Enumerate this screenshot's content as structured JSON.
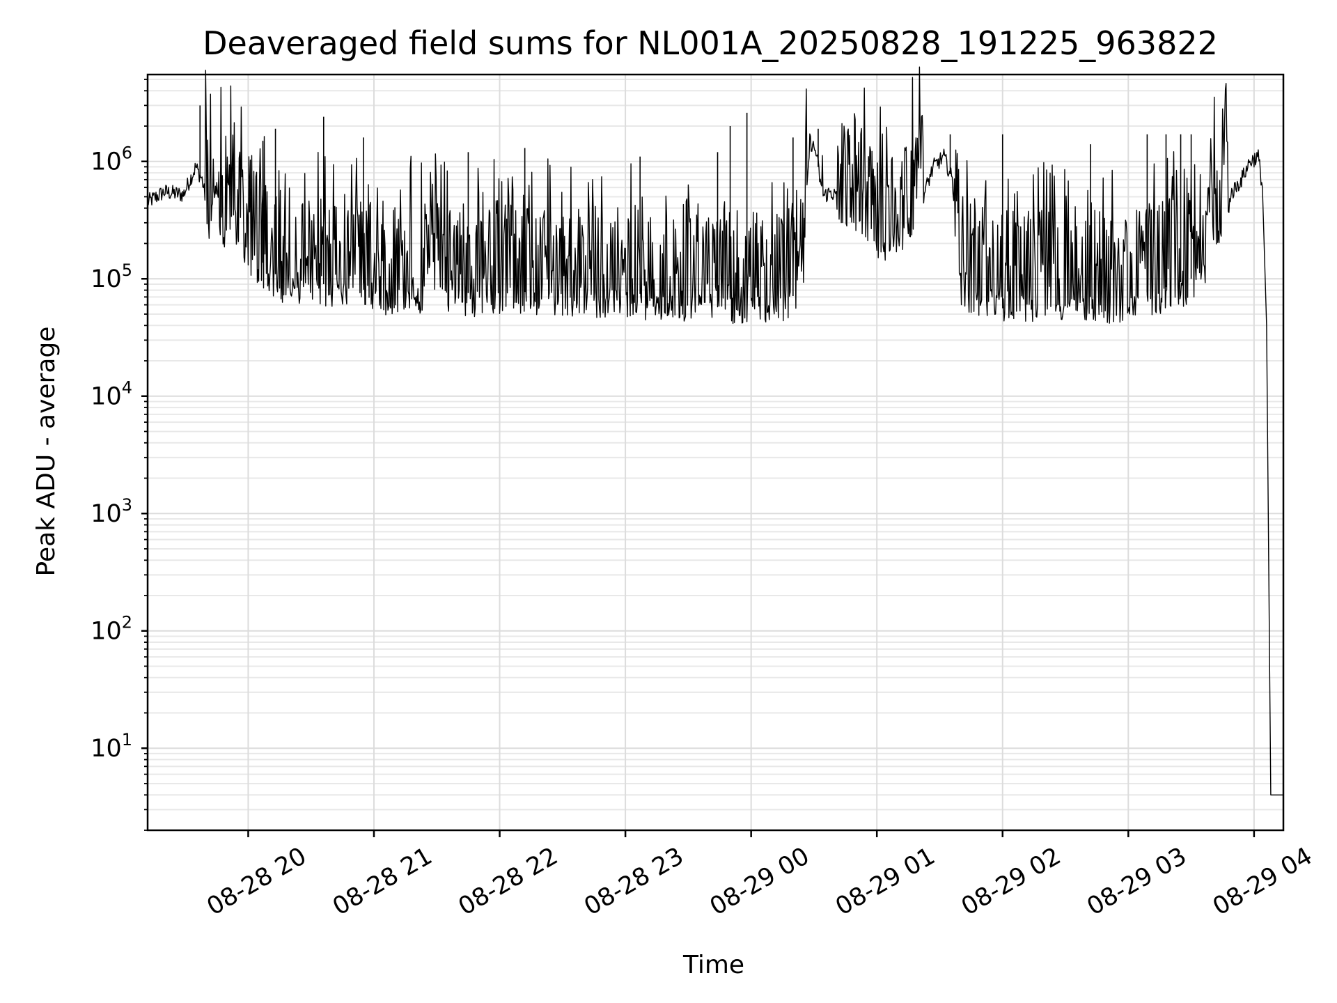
{
  "chart_data": {
    "type": "line",
    "title": "Deaveraged field sums for NL001A_20250828_191225_963822",
    "xlabel": "Time",
    "ylabel": "Peak ADU - average",
    "yscale": "log",
    "ylim": [
      2,
      5500000
    ],
    "xlim": [
      "2025-08-28 19:12",
      "2025-08-29 04:14"
    ],
    "grid": true,
    "x_tick_values": [
      "2025-08-28 20:00",
      "2025-08-28 21:00",
      "2025-08-28 22:00",
      "2025-08-28 23:00",
      "2025-08-29 00:00",
      "2025-08-29 01:00",
      "2025-08-29 02:00",
      "2025-08-29 03:00",
      "2025-08-29 04:00"
    ],
    "x_tick_labels": [
      "08-28 20",
      "08-28 21",
      "08-28 22",
      "08-28 23",
      "08-29 00",
      "08-29 01",
      "08-29 02",
      "08-29 03",
      "08-29 04"
    ],
    "y_ticks": [
      {
        "value": 10,
        "base": "10",
        "exp": "1"
      },
      {
        "value": 100,
        "base": "10",
        "exp": "2"
      },
      {
        "value": 1000,
        "base": "10",
        "exp": "3"
      },
      {
        "value": 10000,
        "base": "10",
        "exp": "4"
      },
      {
        "value": 100000,
        "base": "10",
        "exp": "5"
      },
      {
        "value": 1000000,
        "base": "10",
        "exp": "6"
      }
    ],
    "series": [
      {
        "color": "#000000",
        "x": [
          "2025-08-28 19:12",
          "2025-08-28 19:20",
          "2025-08-28 19:29",
          "2025-08-28 19:35",
          "2025-08-28 19:38",
          "2025-08-28 19:41",
          "2025-08-28 19:45",
          "2025-08-28 19:48",
          "2025-08-28 19:52",
          "2025-08-28 19:56",
          "2025-08-28 20:00",
          "2025-08-28 20:05",
          "2025-08-28 20:10",
          "2025-08-28 20:16",
          "2025-08-28 20:20",
          "2025-08-28 20:28",
          "2025-08-28 20:36",
          "2025-08-28 20:44",
          "2025-08-28 20:50",
          "2025-08-28 20:58",
          "2025-08-28 21:06",
          "2025-08-28 21:14",
          "2025-08-28 21:22",
          "2025-08-28 21:30",
          "2025-08-28 21:38",
          "2025-08-28 21:46",
          "2025-08-28 21:54",
          "2025-08-28 22:02",
          "2025-08-28 22:10",
          "2025-08-28 22:18",
          "2025-08-28 22:26",
          "2025-08-28 22:34",
          "2025-08-28 22:42",
          "2025-08-28 22:50",
          "2025-08-28 22:58",
          "2025-08-28 23:06",
          "2025-08-28 23:14",
          "2025-08-28 23:22",
          "2025-08-28 23:30",
          "2025-08-28 23:38",
          "2025-08-28 23:46",
          "2025-08-28 23:54",
          "2025-08-29 00:02",
          "2025-08-29 00:10",
          "2025-08-29 00:18",
          "2025-08-29 00:24",
          "2025-08-29 00:28",
          "2025-08-29 00:31",
          "2025-08-29 00:34",
          "2025-08-29 00:38",
          "2025-08-29 00:44",
          "2025-08-29 00:52",
          "2025-08-29 01:00",
          "2025-08-29 01:08",
          "2025-08-29 01:16",
          "2025-08-29 01:22",
          "2025-08-29 01:27",
          "2025-08-29 01:32",
          "2025-08-29 01:36",
          "2025-08-29 01:40",
          "2025-08-29 01:46",
          "2025-08-29 01:54",
          "2025-08-29 02:02",
          "2025-08-29 02:10",
          "2025-08-29 02:18",
          "2025-08-29 02:26",
          "2025-08-29 02:34",
          "2025-08-29 02:42",
          "2025-08-29 02:50",
          "2025-08-29 02:58",
          "2025-08-29 03:06",
          "2025-08-29 03:14",
          "2025-08-29 03:22",
          "2025-08-29 03:30",
          "2025-08-29 03:36",
          "2025-08-29 03:42",
          "2025-08-29 03:48",
          "2025-08-29 03:54",
          "2025-08-29 03:58",
          "2025-08-29 04:02",
          "2025-08-29 04:04",
          "2025-08-29 04:06",
          "2025-08-29 04:08",
          "2025-08-29 04:10",
          "2025-08-29 04:14"
        ],
        "y": [
          450000,
          550000,
          520000,
          900000,
          700000,
          350000,
          600000,
          280000,
          400000,
          220000,
          180000,
          150000,
          120000,
          100000,
          110000,
          95000,
          90000,
          100000,
          85000,
          95000,
          80000,
          85000,
          78000,
          90000,
          80000,
          75000,
          85000,
          80000,
          78000,
          75000,
          80000,
          72000,
          78000,
          75000,
          80000,
          75000,
          70000,
          72000,
          68000,
          75000,
          70000,
          68000,
          70000,
          68000,
          72000,
          70000,
          1500000,
          1200000,
          500000,
          550000,
          450000,
          350000,
          250000,
          200000,
          350000,
          500000,
          900000,
          1100000,
          700000,
          100000,
          80000,
          75000,
          70000,
          72000,
          70000,
          68000,
          72000,
          70000,
          68000,
          70000,
          75000,
          80000,
          90000,
          100000,
          120000,
          300000,
          500000,
          700000,
          1000000,
          1100000,
          600000,
          40000,
          4,
          4,
          4
        ]
      }
    ],
    "spikes": [
      {
        "x": "2025-08-28 19:37",
        "y": 3000000
      },
      {
        "x": "2025-08-28 20:07",
        "y": 1500000
      },
      {
        "x": "2025-08-28 20:13",
        "y": 1900000
      },
      {
        "x": "2025-08-28 20:36",
        "y": 2400000
      },
      {
        "x": "2025-08-28 20:55",
        "y": 1600000
      },
      {
        "x": "2025-08-28 21:45",
        "y": 1200000
      },
      {
        "x": "2025-08-28 22:12",
        "y": 1300000
      },
      {
        "x": "2025-08-28 23:07",
        "y": 1100000
      },
      {
        "x": "2025-08-28 23:44",
        "y": 1200000
      },
      {
        "x": "2025-08-28 23:50",
        "y": 2000000
      },
      {
        "x": "2025-08-28 23:58",
        "y": 2600000
      },
      {
        "x": "2025-08-29 00:20",
        "y": 1600000
      },
      {
        "x": "2025-08-29 00:32",
        "y": 1900000
      },
      {
        "x": "2025-08-29 01:35",
        "y": 1700000
      },
      {
        "x": "2025-08-29 02:00",
        "y": 1700000
      },
      {
        "x": "2025-08-29 02:42",
        "y": 1400000
      },
      {
        "x": "2025-08-29 03:09",
        "y": 1700000
      },
      {
        "x": "2025-08-29 03:18",
        "y": 1700000
      },
      {
        "x": "2025-08-29 03:25",
        "y": 1700000
      },
      {
        "x": "2025-08-29 03:30",
        "y": 1700000
      }
    ]
  }
}
